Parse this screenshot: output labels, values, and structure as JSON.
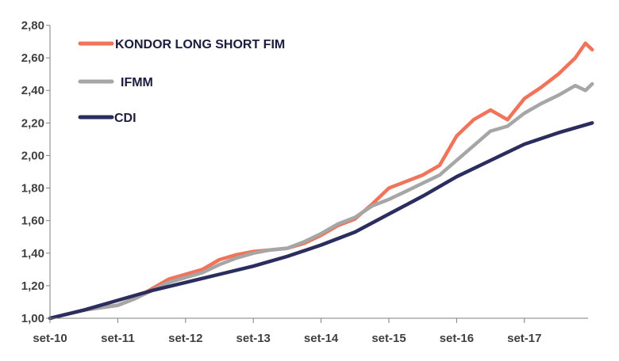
{
  "chart_data": {
    "type": "line",
    "title": "",
    "xlabel": "",
    "ylabel": "",
    "x_ticks": [
      "set-10",
      "set-11",
      "set-12",
      "set-13",
      "set-14",
      "set-15",
      "set-16",
      "set-17"
    ],
    "y_ticks": [
      "1,00",
      "1,20",
      "1,40",
      "1,60",
      "1,80",
      "2,00",
      "2,20",
      "2,40",
      "2,60",
      "2,80"
    ],
    "ylim": [
      1.0,
      2.8
    ],
    "x_unit": "years since set-10",
    "grid": false,
    "legend_position": "top-left",
    "series": [
      {
        "name": "KONDOR LONG SHORT FIM",
        "color": "#f0735a",
        "points": [
          [
            0.0,
            1.0
          ],
          [
            0.5,
            1.05
          ],
          [
            1.0,
            1.08
          ],
          [
            1.25,
            1.12
          ],
          [
            1.5,
            1.18
          ],
          [
            1.75,
            1.24
          ],
          [
            2.0,
            1.27
          ],
          [
            2.25,
            1.3
          ],
          [
            2.5,
            1.36
          ],
          [
            2.75,
            1.39
          ],
          [
            3.0,
            1.41
          ],
          [
            3.25,
            1.42
          ],
          [
            3.5,
            1.43
          ],
          [
            3.75,
            1.46
          ],
          [
            4.0,
            1.51
          ],
          [
            4.25,
            1.57
          ],
          [
            4.5,
            1.61
          ],
          [
            4.75,
            1.7
          ],
          [
            5.0,
            1.8
          ],
          [
            5.25,
            1.84
          ],
          [
            5.5,
            1.88
          ],
          [
            5.75,
            1.94
          ],
          [
            6.0,
            2.12
          ],
          [
            6.25,
            2.22
          ],
          [
            6.5,
            2.28
          ],
          [
            6.75,
            2.22
          ],
          [
            7.0,
            2.35
          ],
          [
            7.25,
            2.42
          ],
          [
            7.5,
            2.5
          ],
          [
            7.75,
            2.6
          ],
          [
            7.9,
            2.69
          ],
          [
            8.0,
            2.65
          ]
        ]
      },
      {
        "name": "IFMM",
        "color": "#a6a6a6",
        "points": [
          [
            0.0,
            1.0
          ],
          [
            0.5,
            1.05
          ],
          [
            1.0,
            1.08
          ],
          [
            1.25,
            1.12
          ],
          [
            1.5,
            1.17
          ],
          [
            1.75,
            1.22
          ],
          [
            2.0,
            1.25
          ],
          [
            2.25,
            1.28
          ],
          [
            2.5,
            1.33
          ],
          [
            2.75,
            1.37
          ],
          [
            3.0,
            1.4
          ],
          [
            3.25,
            1.42
          ],
          [
            3.5,
            1.43
          ],
          [
            3.75,
            1.47
          ],
          [
            4.0,
            1.52
          ],
          [
            4.25,
            1.58
          ],
          [
            4.5,
            1.62
          ],
          [
            4.75,
            1.69
          ],
          [
            5.0,
            1.73
          ],
          [
            5.25,
            1.78
          ],
          [
            5.5,
            1.83
          ],
          [
            5.75,
            1.88
          ],
          [
            6.0,
            1.97
          ],
          [
            6.25,
            2.06
          ],
          [
            6.5,
            2.15
          ],
          [
            6.75,
            2.18
          ],
          [
            7.0,
            2.26
          ],
          [
            7.25,
            2.32
          ],
          [
            7.5,
            2.37
          ],
          [
            7.75,
            2.43
          ],
          [
            7.9,
            2.4
          ],
          [
            8.0,
            2.44
          ]
        ]
      },
      {
        "name": "CDI",
        "color": "#2b2d5e",
        "points": [
          [
            0.0,
            1.0
          ],
          [
            0.5,
            1.05
          ],
          [
            1.0,
            1.11
          ],
          [
            1.5,
            1.17
          ],
          [
            2.0,
            1.22
          ],
          [
            2.5,
            1.27
          ],
          [
            3.0,
            1.32
          ],
          [
            3.5,
            1.38
          ],
          [
            4.0,
            1.45
          ],
          [
            4.5,
            1.53
          ],
          [
            5.0,
            1.64
          ],
          [
            5.5,
            1.75
          ],
          [
            6.0,
            1.87
          ],
          [
            6.5,
            1.97
          ],
          [
            7.0,
            2.07
          ],
          [
            7.5,
            2.14
          ],
          [
            8.0,
            2.2
          ]
        ]
      }
    ]
  }
}
